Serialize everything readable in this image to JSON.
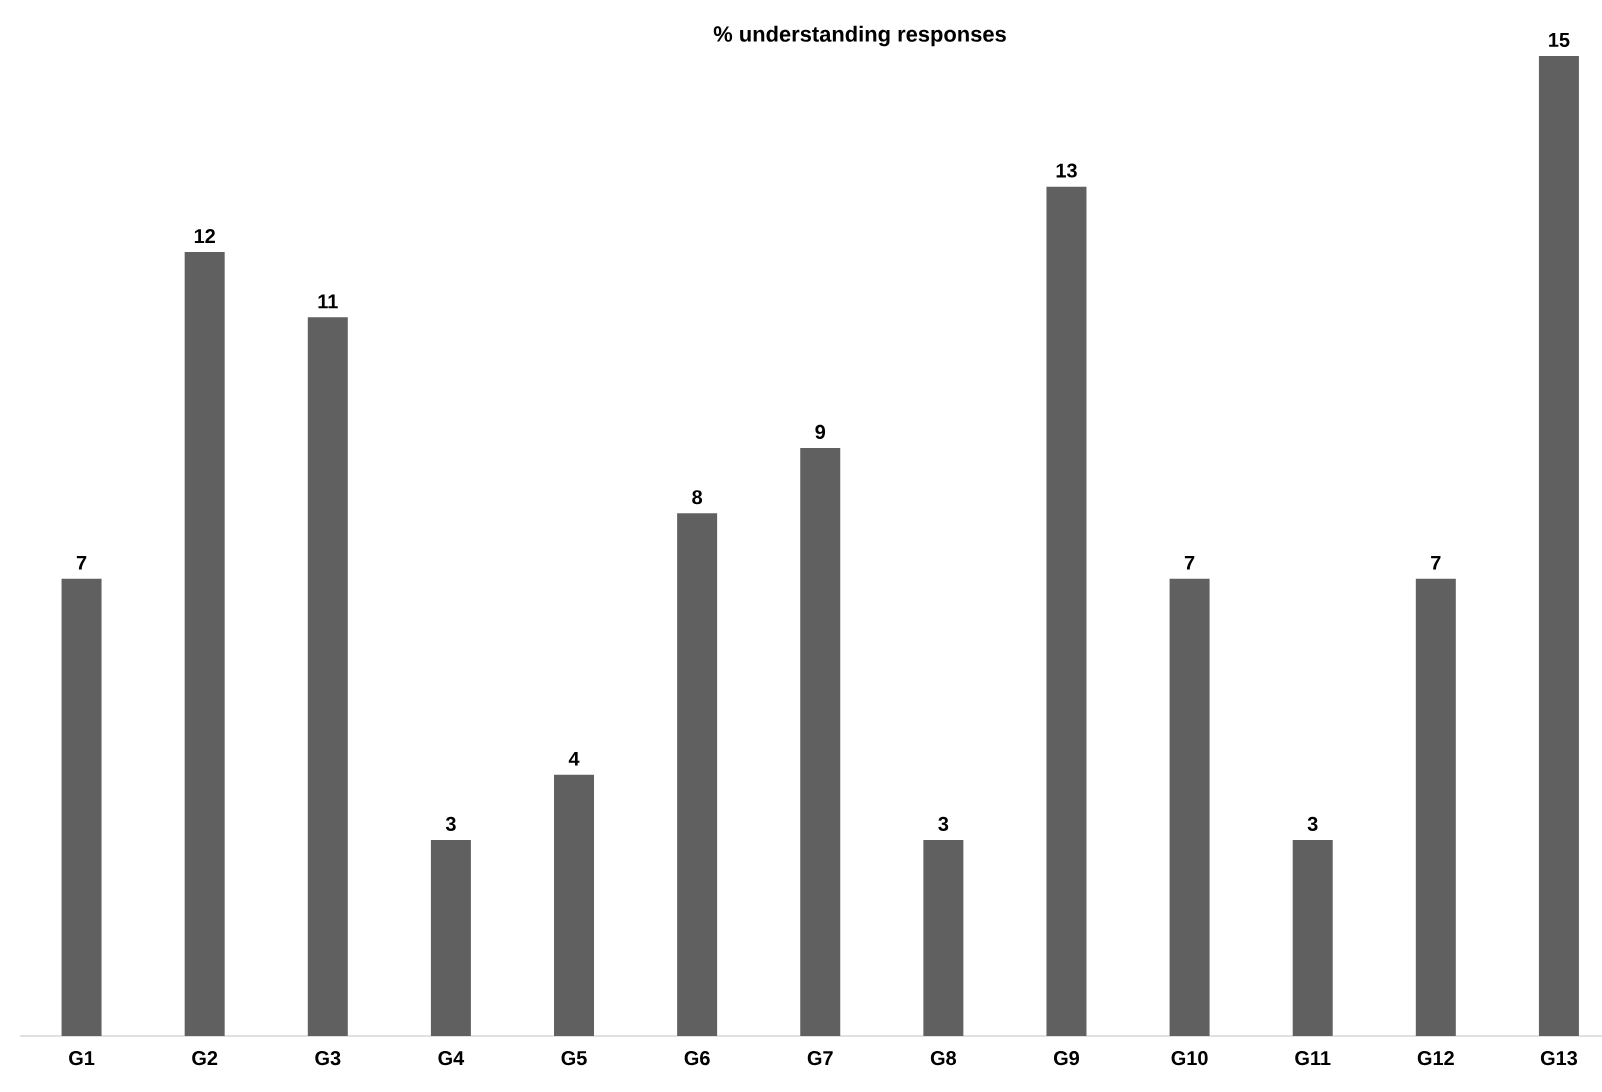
{
  "chart_data": {
    "type": "bar",
    "title": "% understanding responses",
    "categories": [
      "G1",
      "G2",
      "G3",
      "G4",
      "G5",
      "G6",
      "G7",
      "G8",
      "G9",
      "G10",
      "G11",
      "G12",
      "G13"
    ],
    "values": [
      7,
      12,
      11,
      3,
      4,
      8,
      9,
      3,
      13,
      7,
      3,
      7,
      15
    ],
    "color": "#606060",
    "data_labels": true,
    "tick_labels": "x"
  }
}
